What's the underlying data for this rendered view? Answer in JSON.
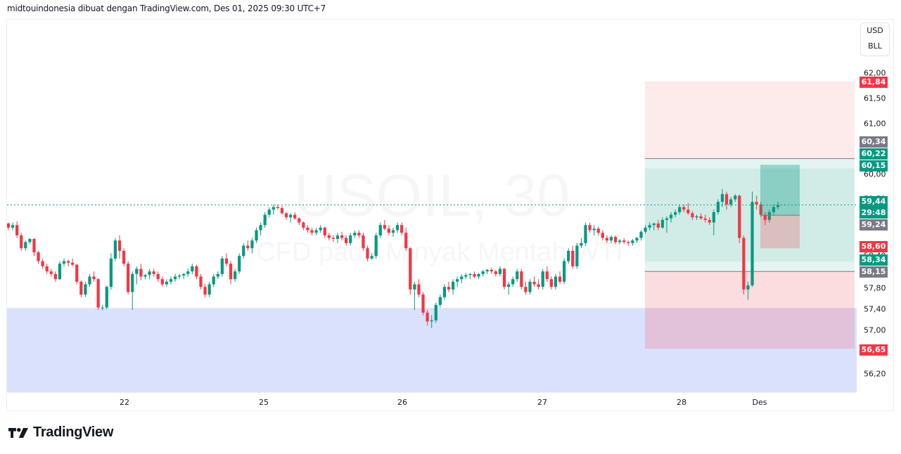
{
  "header": {
    "caption": "midtouindonesia dibuat dengan TradingView.com, Des 01, 2025 09:30 UTC+7"
  },
  "watermark": {
    "symbol_line": "USOIL, 30",
    "description_line": "CFD pada Minyak Mentah WTI"
  },
  "price_axis": {
    "unit_currency": "USD",
    "unit_measure": "BLL",
    "ticks": [
      {
        "label": "62,00",
        "y": 104
      },
      {
        "label": "61,50",
        "y": 140
      },
      {
        "label": "61,00",
        "y": 176
      },
      {
        "label": "60,00",
        "y": 248
      },
      {
        "label": "59,50",
        "y": 283
      },
      {
        "label": "58,40",
        "y": 364
      },
      {
        "label": "57,80",
        "y": 410
      },
      {
        "label": "57,40",
        "y": 440
      },
      {
        "label": "57,00",
        "y": 470
      },
      {
        "label": "56,20",
        "y": 532
      }
    ],
    "badges": [
      {
        "label": "61,84",
        "y": 117,
        "color": "#f23645"
      },
      {
        "label": "60,34",
        "y": 202,
        "color": "#787b86"
      },
      {
        "label": "60,22",
        "y": 219,
        "color": "#089981"
      },
      {
        "label": "60,15",
        "y": 236,
        "color": "#089981"
      },
      {
        "label": "59,44",
        "y": 287,
        "color": "#089981"
      },
      {
        "label": "29:48",
        "y": 303,
        "color": "#089981"
      },
      {
        "label": "59,24",
        "y": 320,
        "color": "#787b86"
      },
      {
        "label": "58,60",
        "y": 351,
        "color": "#f23645"
      },
      {
        "label": "58,34",
        "y": 370,
        "color": "#089981"
      },
      {
        "label": "58,15",
        "y": 387,
        "color": "#787b86"
      },
      {
        "label": "56,65",
        "y": 498,
        "color": "#f23645"
      }
    ]
  },
  "time_axis": {
    "labels": [
      {
        "label": "22",
        "x": 177
      },
      {
        "label": "25",
        "x": 375
      },
      {
        "label": "26",
        "x": 572
      },
      {
        "label": "27",
        "x": 771
      },
      {
        "label": "28",
        "x": 969
      },
      {
        "label": "Des",
        "x": 1080
      }
    ]
  },
  "branding": {
    "logo_text": "TradingView"
  },
  "colors": {
    "up": "#089981",
    "down": "#f23645",
    "demand_zone": "#d9e1fc",
    "position_profit": "#d1ece6",
    "position_stop_upper": "#fdeaea",
    "position_stop_lower": "#fad6d9",
    "last_price_line": "#089981"
  },
  "chart_data": {
    "type": "candlestick",
    "title": "USOIL, 30 — CFD pada Minyak Mentah WTI",
    "timeframe": "30",
    "xlabel": "",
    "ylabel": "USD / BLL",
    "ylim": [
      56.0,
      62.3
    ],
    "x_tick_labels": [
      "22",
      "25",
      "26",
      "27",
      "28",
      "Des"
    ],
    "y_tick_labels": [
      "62,00",
      "61,50",
      "61,00",
      "60,00",
      "59,50",
      "57,80",
      "57,40",
      "57,00",
      "56,20"
    ],
    "last_price": 59.44,
    "countdown": "29:48",
    "grid": false,
    "annotations": {
      "demand_zone": {
        "top": 57.44,
        "bottom": 55.8,
        "color": "#d9e1fc"
      },
      "range_box": {
        "upper_line": 60.34,
        "lower_line": 58.15,
        "profit_top": 60.15,
        "profit_bottom": 58.34,
        "stop_upper_top": 61.84,
        "stop_lower_bottom": 56.65
      },
      "long_position": {
        "entry": 59.24,
        "target": 60.22,
        "stop": 58.6
      }
    },
    "ohlc": [
      [
        59.08,
        59.1,
        58.95,
        59.0
      ],
      [
        59.0,
        59.1,
        58.95,
        59.05
      ],
      [
        59.05,
        59.12,
        58.8,
        58.85
      ],
      [
        58.85,
        58.9,
        58.55,
        58.6
      ],
      [
        58.6,
        58.75,
        58.55,
        58.72
      ],
      [
        58.72,
        58.8,
        58.68,
        58.78
      ],
      [
        58.78,
        58.8,
        58.45,
        58.52
      ],
      [
        58.52,
        58.55,
        58.3,
        58.35
      ],
      [
        58.35,
        58.4,
        58.2,
        58.25
      ],
      [
        58.25,
        58.3,
        58.1,
        58.15
      ],
      [
        58.15,
        58.2,
        58.05,
        58.1
      ],
      [
        58.1,
        58.15,
        57.95,
        58.0
      ],
      [
        58.0,
        58.35,
        57.98,
        58.3
      ],
      [
        58.3,
        58.4,
        58.25,
        58.35
      ],
      [
        58.35,
        58.38,
        58.25,
        58.32
      ],
      [
        58.32,
        58.4,
        58.25,
        58.28
      ],
      [
        58.28,
        58.3,
        57.9,
        57.95
      ],
      [
        57.95,
        57.98,
        57.65,
        57.7
      ],
      [
        57.7,
        57.95,
        57.65,
        57.9
      ],
      [
        57.9,
        58.1,
        57.85,
        58.05
      ],
      [
        58.05,
        58.15,
        57.95,
        58.0
      ],
      [
        58.0,
        58.02,
        57.4,
        57.45
      ],
      [
        57.45,
        57.5,
        57.4,
        57.45
      ],
      [
        57.45,
        57.88,
        57.42,
        57.85
      ],
      [
        57.85,
        58.5,
        57.8,
        58.4
      ],
      [
        58.4,
        58.8,
        58.35,
        58.75
      ],
      [
        58.75,
        58.85,
        58.4,
        58.55
      ],
      [
        58.55,
        58.6,
        58.25,
        58.3
      ],
      [
        58.3,
        58.35,
        57.7,
        57.75
      ],
      [
        57.75,
        58.15,
        57.4,
        58.1
      ],
      [
        58.1,
        58.25,
        57.9,
        58.2
      ],
      [
        58.2,
        58.3,
        57.98,
        58.05
      ],
      [
        58.05,
        58.1,
        58.0,
        58.08
      ],
      [
        58.08,
        58.2,
        58.0,
        58.15
      ],
      [
        58.15,
        58.2,
        58.05,
        58.1
      ],
      [
        58.1,
        58.15,
        57.95,
        58.0
      ],
      [
        58.0,
        58.05,
        57.85,
        57.9
      ],
      [
        57.9,
        58.0,
        57.85,
        57.95
      ],
      [
        57.95,
        58.05,
        57.9,
        58.0
      ],
      [
        58.0,
        58.1,
        57.95,
        58.05
      ],
      [
        58.05,
        58.1,
        58.0,
        58.07
      ],
      [
        58.07,
        58.12,
        58.0,
        58.1
      ],
      [
        58.1,
        58.2,
        58.05,
        58.15
      ],
      [
        58.15,
        58.3,
        58.1,
        58.25
      ],
      [
        58.25,
        58.28,
        58.0,
        58.05
      ],
      [
        58.05,
        58.1,
        57.8,
        57.85
      ],
      [
        57.85,
        57.9,
        57.65,
        57.7
      ],
      [
        57.7,
        57.95,
        57.65,
        57.9
      ],
      [
        57.9,
        58.1,
        57.85,
        58.05
      ],
      [
        58.05,
        58.15,
        58.0,
        58.1
      ],
      [
        58.1,
        58.45,
        58.05,
        58.4
      ],
      [
        58.4,
        58.5,
        58.25,
        58.3
      ],
      [
        58.3,
        58.35,
        57.9,
        58.0
      ],
      [
        58.0,
        58.2,
        57.95,
        58.15
      ],
      [
        58.15,
        58.5,
        58.1,
        58.45
      ],
      [
        58.45,
        58.7,
        58.4,
        58.65
      ],
      [
        58.65,
        58.75,
        58.55,
        58.6
      ],
      [
        58.6,
        58.8,
        58.5,
        58.75
      ],
      [
        58.75,
        59.0,
        58.7,
        58.95
      ],
      [
        58.95,
        59.1,
        58.85,
        59.05
      ],
      [
        59.05,
        59.3,
        59.0,
        59.25
      ],
      [
        59.25,
        59.4,
        59.2,
        59.35
      ],
      [
        59.35,
        59.45,
        59.25,
        59.4
      ],
      [
        59.4,
        59.45,
        59.35,
        59.38
      ],
      [
        59.38,
        59.42,
        59.25,
        59.28
      ],
      [
        59.28,
        59.3,
        59.15,
        59.2
      ],
      [
        59.2,
        59.28,
        59.1,
        59.25
      ],
      [
        59.25,
        59.3,
        59.15,
        59.18
      ],
      [
        59.18,
        59.2,
        59.05,
        59.1
      ],
      [
        59.1,
        59.12,
        58.95,
        59.0
      ],
      [
        59.0,
        59.05,
        58.9,
        58.95
      ],
      [
        58.95,
        59.0,
        58.85,
        58.9
      ],
      [
        58.9,
        59.0,
        58.85,
        58.95
      ],
      [
        58.95,
        59.05,
        58.9,
        59.0
      ],
      [
        59.0,
        59.02,
        58.8,
        58.85
      ],
      [
        58.85,
        58.9,
        58.75,
        58.8
      ],
      [
        58.8,
        58.85,
        58.72,
        58.78
      ],
      [
        58.78,
        58.9,
        58.7,
        58.85
      ],
      [
        58.85,
        58.92,
        58.75,
        58.8
      ],
      [
        58.8,
        58.85,
        58.65,
        58.7
      ],
      [
        58.7,
        58.9,
        58.65,
        58.85
      ],
      [
        58.85,
        58.95,
        58.8,
        58.9
      ],
      [
        58.9,
        58.95,
        58.8,
        58.85
      ],
      [
        58.85,
        58.9,
        58.55,
        58.6
      ],
      [
        58.6,
        58.65,
        58.35,
        58.4
      ],
      [
        58.4,
        58.5,
        58.38,
        58.45
      ],
      [
        58.45,
        58.9,
        58.4,
        58.85
      ],
      [
        58.85,
        59.1,
        58.8,
        59.05
      ],
      [
        59.05,
        59.15,
        58.95,
        58.98
      ],
      [
        58.98,
        59.05,
        58.85,
        58.9
      ],
      [
        58.9,
        59.0,
        58.82,
        58.95
      ],
      [
        58.95,
        59.1,
        58.9,
        59.05
      ],
      [
        59.05,
        59.1,
        58.85,
        58.9
      ],
      [
        58.9,
        59.0,
        58.55,
        58.6
      ],
      [
        58.6,
        58.62,
        57.7,
        57.8
      ],
      [
        57.8,
        57.95,
        57.4,
        57.9
      ],
      [
        57.9,
        58.0,
        57.65,
        57.7
      ],
      [
        57.7,
        57.75,
        57.3,
        57.35
      ],
      [
        57.35,
        57.4,
        57.1,
        57.18
      ],
      [
        57.18,
        57.3,
        57.05,
        57.2
      ],
      [
        57.2,
        57.55,
        57.15,
        57.5
      ],
      [
        57.5,
        57.7,
        57.45,
        57.65
      ],
      [
        57.65,
        57.9,
        57.6,
        57.85
      ],
      [
        57.85,
        57.95,
        57.75,
        57.8
      ],
      [
        57.8,
        58.0,
        57.7,
        57.95
      ],
      [
        57.95,
        58.05,
        57.85,
        58.0
      ],
      [
        58.0,
        58.1,
        57.92,
        58.05
      ],
      [
        58.05,
        58.12,
        58.0,
        58.08
      ],
      [
        58.08,
        58.12,
        58.0,
        58.1
      ],
      [
        58.1,
        58.15,
        58.02,
        58.05
      ],
      [
        58.05,
        58.12,
        58.0,
        58.1
      ],
      [
        58.1,
        58.18,
        58.05,
        58.15
      ],
      [
        58.15,
        58.2,
        58.1,
        58.18
      ],
      [
        58.18,
        58.22,
        58.1,
        58.15
      ],
      [
        58.15,
        58.18,
        58.05,
        58.1
      ],
      [
        58.1,
        58.25,
        58.05,
        58.2
      ],
      [
        58.2,
        58.22,
        57.8,
        57.85
      ],
      [
        57.85,
        57.95,
        57.7,
        57.9
      ],
      [
        57.9,
        58.05,
        57.85,
        58.0
      ],
      [
        58.0,
        58.2,
        57.95,
        58.15
      ],
      [
        58.15,
        58.2,
        57.8,
        57.85
      ],
      [
        57.85,
        57.95,
        57.7,
        57.75
      ],
      [
        57.75,
        58.0,
        57.7,
        57.95
      ],
      [
        57.95,
        58.05,
        57.85,
        57.9
      ],
      [
        57.9,
        58.0,
        57.8,
        57.85
      ],
      [
        57.85,
        58.2,
        57.8,
        58.15
      ],
      [
        58.15,
        58.25,
        57.95,
        58.0
      ],
      [
        58.0,
        58.05,
        57.8,
        57.85
      ],
      [
        57.85,
        58.1,
        57.8,
        58.05
      ],
      [
        58.05,
        58.15,
        57.9,
        57.95
      ],
      [
        57.95,
        58.4,
        57.9,
        58.35
      ],
      [
        58.35,
        58.6,
        58.3,
        58.55
      ],
      [
        58.55,
        58.65,
        58.2,
        58.25
      ],
      [
        58.25,
        58.7,
        58.2,
        58.65
      ],
      [
        58.65,
        58.8,
        58.6,
        58.7
      ],
      [
        58.7,
        59.1,
        58.65,
        59.05
      ],
      [
        59.05,
        59.1,
        58.9,
        58.95
      ],
      [
        58.95,
        59.05,
        58.85,
        58.98
      ],
      [
        58.98,
        59.02,
        58.85,
        58.9
      ],
      [
        58.9,
        58.95,
        58.75,
        58.8
      ],
      [
        58.8,
        58.85,
        58.7,
        58.75
      ],
      [
        58.75,
        58.85,
        58.7,
        58.82
      ],
      [
        58.82,
        58.85,
        58.68,
        58.72
      ],
      [
        58.72,
        58.78,
        58.68,
        58.75
      ],
      [
        58.75,
        58.8,
        58.68,
        58.72
      ],
      [
        58.72,
        58.75,
        58.65,
        58.7
      ],
      [
        58.7,
        58.78,
        58.65,
        58.75
      ],
      [
        58.75,
        58.82,
        58.7,
        58.8
      ],
      [
        58.8,
        58.95,
        58.75,
        58.92
      ],
      [
        58.92,
        59.05,
        58.88,
        59.0
      ],
      [
        59.0,
        59.1,
        58.95,
        59.05
      ],
      [
        59.05,
        59.1,
        58.95,
        59.08
      ],
      [
        59.08,
        59.15,
        58.95,
        59.0
      ],
      [
        59.0,
        59.2,
        58.98,
        59.15
      ],
      [
        59.15,
        59.22,
        58.9,
        59.18
      ],
      [
        59.18,
        59.3,
        59.1,
        59.25
      ],
      [
        59.25,
        59.35,
        59.2,
        59.3
      ],
      [
        59.3,
        59.45,
        59.25,
        59.4
      ],
      [
        59.4,
        59.45,
        59.3,
        59.35
      ],
      [
        59.35,
        59.48,
        59.25,
        59.28
      ],
      [
        59.28,
        59.32,
        59.15,
        59.2
      ],
      [
        59.2,
        59.25,
        59.15,
        59.22
      ],
      [
        59.22,
        59.28,
        59.15,
        59.18
      ],
      [
        59.18,
        59.25,
        59.1,
        59.15
      ],
      [
        59.15,
        59.2,
        59.05,
        59.1
      ],
      [
        59.1,
        59.35,
        58.85,
        59.3
      ],
      [
        59.3,
        59.55,
        59.25,
        59.5
      ],
      [
        59.5,
        59.75,
        59.4,
        59.65
      ],
      [
        59.65,
        59.7,
        59.35,
        59.45
      ],
      [
        59.45,
        59.6,
        59.4,
        59.55
      ],
      [
        59.55,
        59.65,
        59.5,
        59.62
      ],
      [
        59.62,
        59.64,
        58.7,
        58.8
      ],
      [
        58.8,
        58.85,
        57.7,
        57.8
      ],
      [
        57.8,
        57.95,
        57.6,
        57.88
      ],
      [
        57.88,
        59.7,
        57.85,
        59.5
      ],
      [
        59.5,
        59.62,
        59.35,
        59.45
      ],
      [
        59.45,
        59.5,
        59.2,
        59.25
      ],
      [
        59.25,
        59.3,
        59.05,
        59.15
      ],
      [
        59.15,
        59.35,
        59.1,
        59.3
      ],
      [
        59.3,
        59.45,
        59.25,
        59.4
      ],
      [
        59.4,
        59.5,
        59.35,
        59.44
      ]
    ]
  }
}
